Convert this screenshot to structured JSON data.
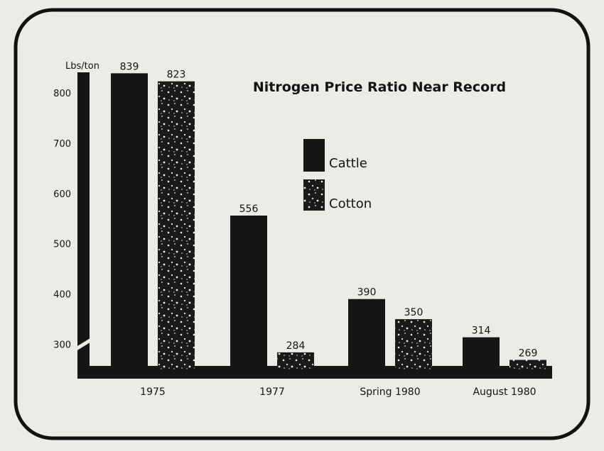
{
  "chart_data": {
    "type": "bar",
    "title": "Nitrogen Price Ratio Near Record",
    "ylabel": "Lbs/ton",
    "ylim": [
      250,
      845
    ],
    "yticks": [
      300,
      400,
      500,
      600,
      700,
      800
    ],
    "categories": [
      "1975",
      "1977",
      "Spring 1980",
      "August 1980"
    ],
    "series": [
      {
        "name": "Cattle",
        "values": [
          839,
          556,
          390,
          314
        ],
        "pattern": "solid"
      },
      {
        "name": "Cotton",
        "values": [
          823,
          284,
          350,
          269
        ],
        "pattern": "speckled"
      }
    ],
    "data_labels": [
      [
        "839",
        "823"
      ],
      [
        "556",
        "284"
      ],
      [
        "390",
        "350"
      ],
      [
        "314",
        "269"
      ]
    ],
    "legend": {
      "placement": "center"
    },
    "grid": false,
    "colors": {
      "background": "#ecebe6",
      "ink": "#161616",
      "speckle": "#f1efe8"
    }
  }
}
